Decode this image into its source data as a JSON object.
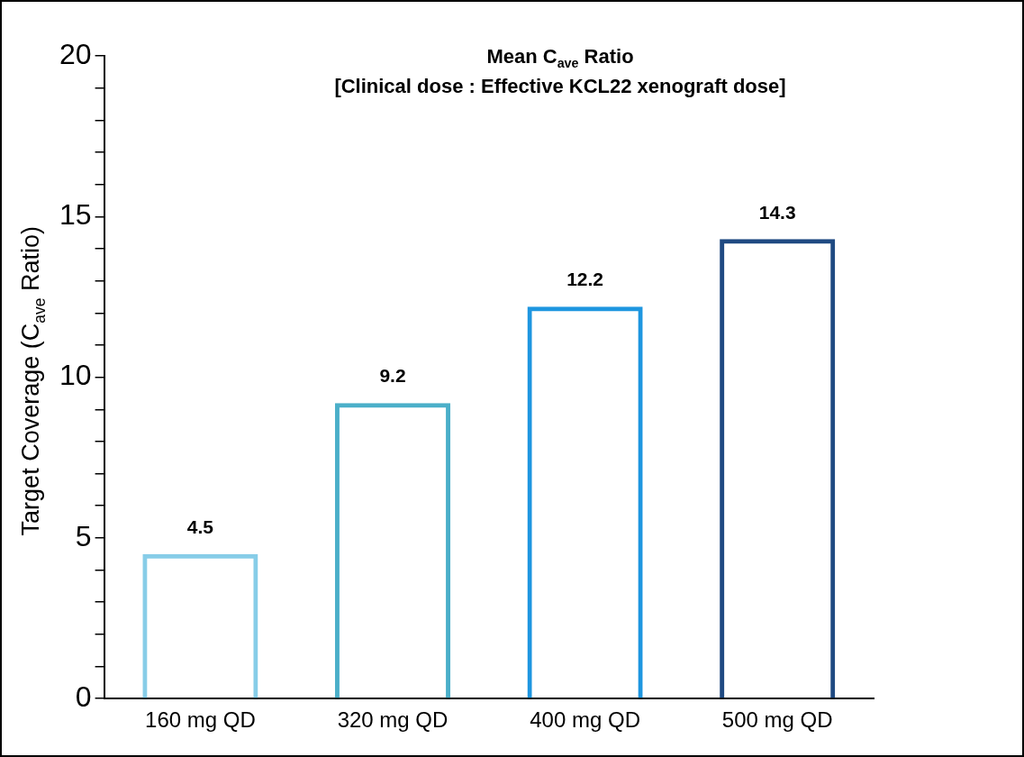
{
  "chart_data": {
    "type": "bar",
    "title": "Mean C$_{ave}$ Ratio\n[Clinical dose : Effective KCL22 xenograft dose]",
    "ylabel": "Target Coverage (C$_{ave}$ Ratio)",
    "categories": [
      "160 mg QD",
      "320 mg QD",
      "400 mg QD",
      "500 mg QD"
    ],
    "series": [
      {
        "colors": [
          "#87cde8",
          "#4bafc9",
          "#1e96e0",
          "#1f4a82"
        ],
        "values": [
          4.5,
          9.2,
          12.2,
          14.3
        ]
      }
    ],
    "ylim": [
      0,
      20
    ],
    "yticks": [
      0,
      {
        "value": 1,
        "label": null
      },
      {
        "value": 2,
        "label": null
      },
      {
        "value": 3,
        "label": null
      },
      {
        "value": 4,
        "label": null
      },
      5,
      {
        "value": 6,
        "label": null
      },
      {
        "value": 7,
        "label": null
      },
      {
        "value": 8,
        "label": null
      },
      {
        "value": 9,
        "label": null
      },
      10,
      {
        "value": 11,
        "label": null
      },
      {
        "value": 12,
        "label": null
      },
      {
        "value": 13,
        "label": null
      },
      {
        "value": 14,
        "label": null
      },
      15,
      {
        "value": 16,
        "label": null
      },
      {
        "value": 17,
        "label": null
      },
      {
        "value": 18,
        "label": null
      },
      {
        "value": 19,
        "label": null
      },
      20
    ],
    "grid": false,
    "legend": false,
    "data_labels": true
  }
}
